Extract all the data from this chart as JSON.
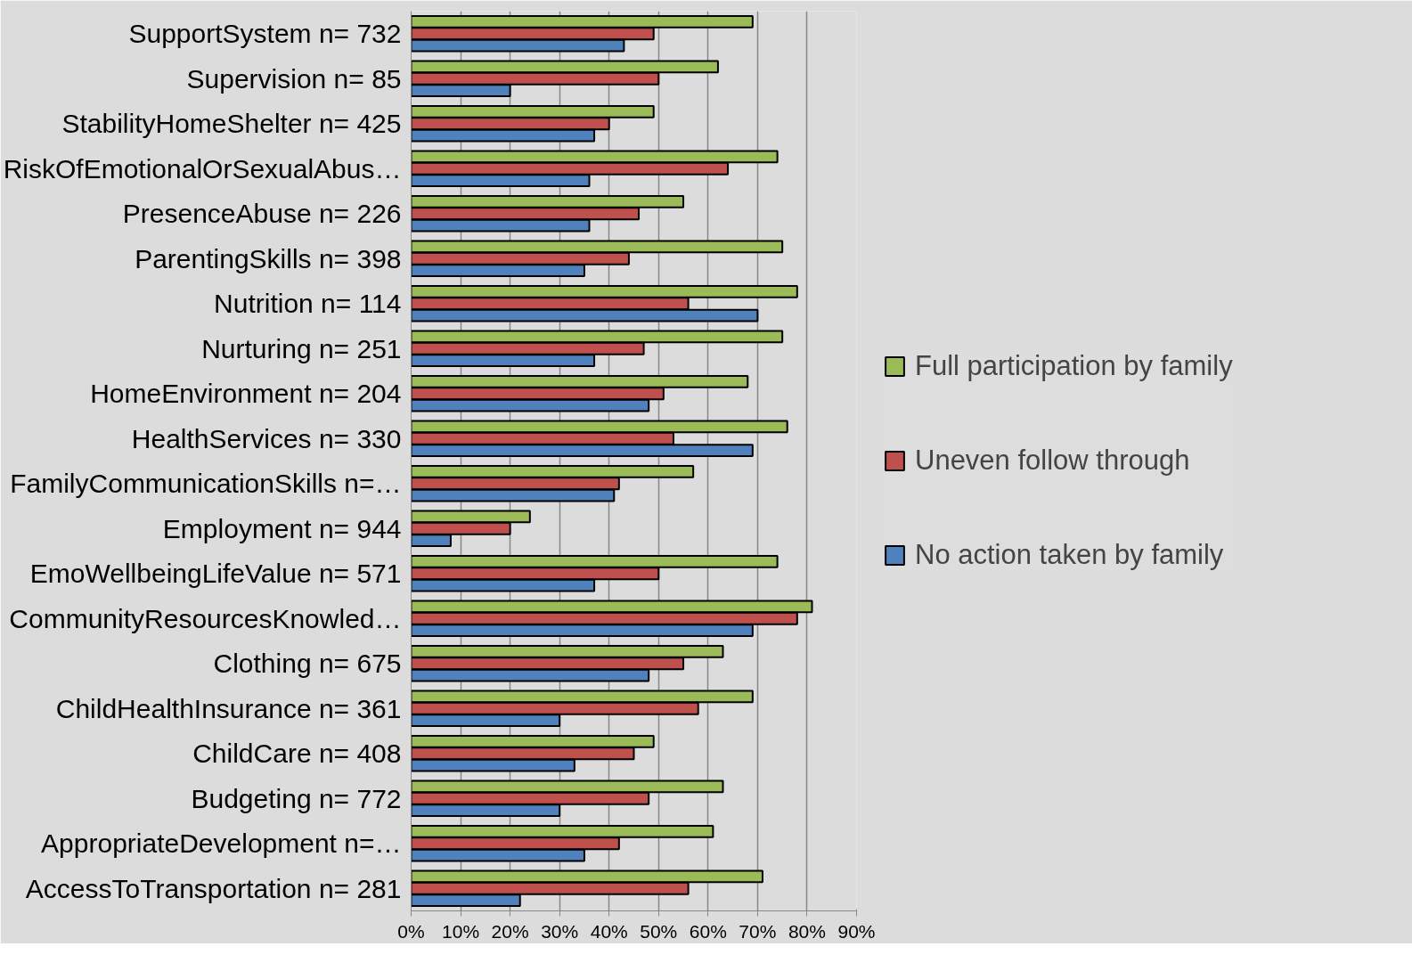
{
  "chart_data": {
    "type": "bar",
    "orientation": "horizontal",
    "categories": [
      "SupportSystem n= 732",
      "Supervision n= 85",
      "StabilityHomeShelter n= 425",
      "RiskOfEmotionalOrSexualAbus…",
      "PresenceAbuse n= 226",
      "ParentingSkills n= 398",
      "Nutrition n= 114",
      "Nurturing n= 251",
      "HomeEnvironment n= 204",
      "HealthServices n= 330",
      "FamilyCommunicationSkills n=…",
      "Employment n= 944",
      "EmoWellbeingLifeValue n= 571",
      "CommunityResourcesKnowled…",
      "Clothing n= 675",
      "ChildHealthInsurance n= 361",
      "ChildCare n= 408",
      "Budgeting n= 772",
      "AppropriateDevelopment n=…",
      "AccessToTransportation n= 281"
    ],
    "series": [
      {
        "name": "Full participation by family",
        "color": "#9bbb59",
        "values": [
          69,
          62,
          49,
          74,
          55,
          75,
          78,
          75,
          68,
          76,
          57,
          24,
          74,
          81,
          63,
          69,
          49,
          63,
          61,
          71
        ]
      },
      {
        "name": "Uneven follow through",
        "color": "#c0504d",
        "values": [
          49,
          50,
          40,
          64,
          46,
          44,
          56,
          47,
          51,
          53,
          42,
          20,
          50,
          78,
          55,
          58,
          45,
          48,
          42,
          56
        ]
      },
      {
        "name": "No action taken by family",
        "color": "#4f81bd",
        "values": [
          43,
          20,
          37,
          36,
          36,
          35,
          70,
          37,
          48,
          69,
          41,
          8,
          37,
          69,
          48,
          30,
          33,
          30,
          35,
          22
        ]
      }
    ],
    "xlim": [
      0,
      90
    ],
    "xticks": [
      {
        "value": 0,
        "label": "0%"
      },
      {
        "value": 10,
        "label": "10%"
      },
      {
        "value": 20,
        "label": "20%"
      },
      {
        "value": 30,
        "label": "30%"
      },
      {
        "value": 40,
        "label": "40%"
      },
      {
        "value": 50,
        "label": "50%"
      },
      {
        "value": 60,
        "label": "60%"
      },
      {
        "value": 70,
        "label": "70%"
      },
      {
        "value": 80,
        "label": "80%"
      },
      {
        "value": 90,
        "label": "90%"
      }
    ],
    "grid": "x",
    "legend": "right"
  }
}
